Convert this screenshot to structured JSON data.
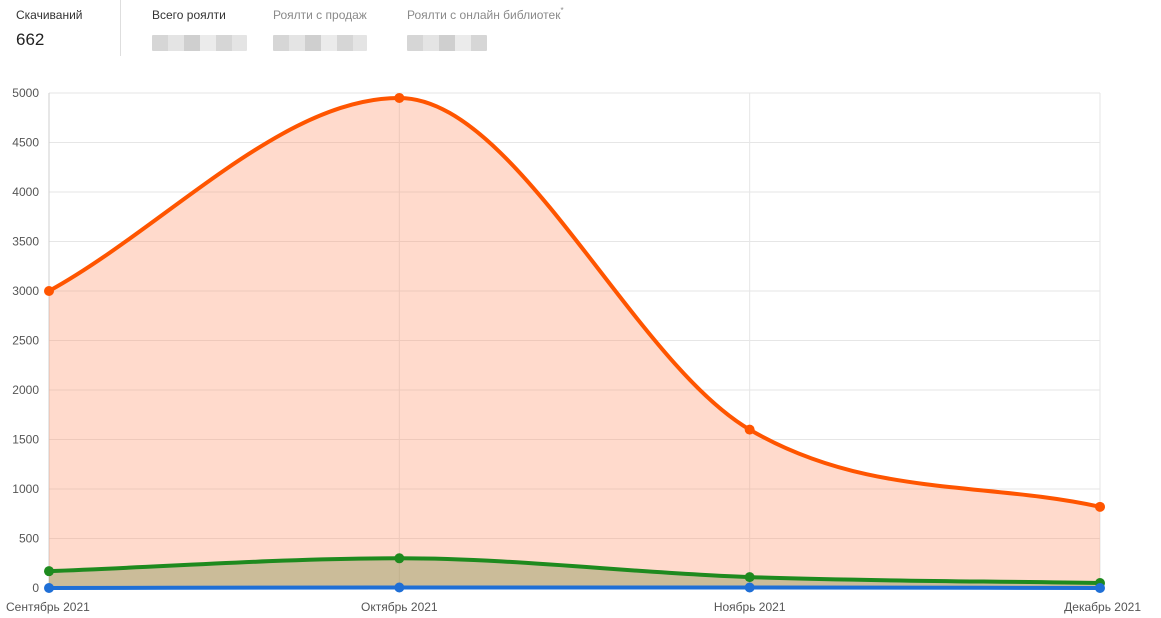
{
  "stats": {
    "downloads_label": "Скачиваний",
    "downloads_value": "662",
    "total_royalty_label": "Всего роялти",
    "sales_royalty_label": "Роялти с продаж",
    "library_royalty_label": "Роялти с онлайн библиотек",
    "library_royalty_mark": "*"
  },
  "chart_data": {
    "type": "area",
    "categories": [
      "Сентябрь 2021",
      "Октябрь 2021",
      "Ноябрь 2021",
      "Декабрь 2021"
    ],
    "ylim": [
      0,
      5000
    ],
    "yticks": [
      0,
      500,
      1000,
      1500,
      2000,
      2500,
      3000,
      3500,
      4000,
      4500,
      5000
    ],
    "grid": true,
    "title": "",
    "xlabel": "",
    "ylabel": "",
    "series": [
      {
        "values": [
          3000,
          4950,
          1600,
          820
        ],
        "color": "#ff5500",
        "fill": "rgba(255,140,95,0.32)"
      },
      {
        "values": [
          170,
          300,
          110,
          50
        ],
        "color": "#1e8a1e",
        "fill": "rgba(140,150,90,0.45)"
      },
      {
        "values": [
          0,
          5,
          5,
          0
        ],
        "color": "#1f6fd6",
        "fill": "none"
      }
    ]
  }
}
